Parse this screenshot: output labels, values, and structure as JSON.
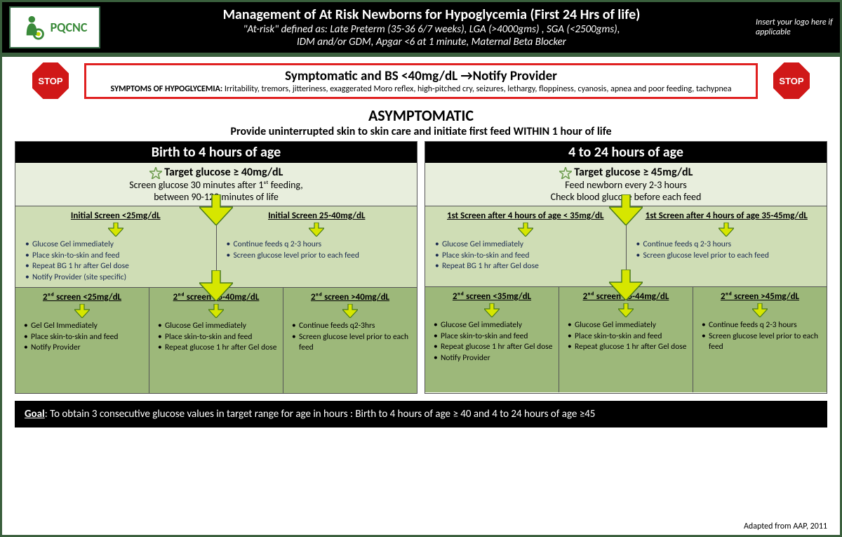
{
  "header": {
    "logo_text": "PQCNC",
    "title": "Management of At Risk Newborns for Hypoglycemia (First 24 Hrs of life)",
    "subtitle1": "\"At-risk\" defined as: Late Preterm (35-36 6/7 weeks), LGA (>4000gms) , SGA (<2500gms),",
    "subtitle2": "IDM and/or GDM, Apgar <6 at 1 minute, Maternal Beta Blocker",
    "logo_placeholder": "Insert your logo here if applicable"
  },
  "alert": {
    "stop_label": "STOP",
    "title": "Symptomatic and BS <40mg/dL →Notify Provider",
    "symptoms_label": "SYMPTOMS OF HYPOGLYCEMIA:",
    "symptoms": " Irritability, tremors, jitteriness, exaggerated Moro reflex, high-pitched cry, seizures, lethargy, floppiness, cyanosis, apnea and poor feeding, tachypnea"
  },
  "asymp": {
    "title": "ASYMPTOMATIC",
    "sub": "Provide uninterrupted skin to skin care and initiate first feed WITHIN 1 hour of life"
  },
  "col_left": {
    "header": "Birth to 4 hours of age",
    "target_title": "Target glucose  ≥ 40mg/dL",
    "target_sub1": "Screen glucose 30 minutes after 1ˢᵗ feeding,",
    "target_sub2": "between 90-120 minutes of life",
    "initial1_header": "Initial Screen <25mg/dL",
    "initial1_items": [
      "Glucose Gel immediately",
      "Place skin-to-skin and feed",
      "Repeat BG 1 hr after Gel dose",
      "Notify Provider (site specific)"
    ],
    "initial2_header": "Initial Screen 25-40mg/dL",
    "initial2_items": [
      "Continue feeds q 2-3 hours",
      "Screen glucose level prior to each feed"
    ],
    "second1_header": "2ⁿᵈ screen <25mg/dL",
    "second1_items": [
      "Gel Gel Immediately",
      "Place  skin-to-skin and feed",
      "Notify Provider"
    ],
    "second2_header": "2ⁿᵈ screen 25-40mg/dL",
    "second2_items": [
      "Glucose Gel immediately",
      "Place  skin-to-skin and feed",
      "Repeat glucose 1 hr after Gel dose"
    ],
    "second3_header": "2ⁿᵈ screen  >40mg/dL",
    "second3_items": [
      "Continue feeds q2-3hrs",
      "Screen glucose level prior to each feed"
    ]
  },
  "col_right": {
    "header": "4 to 24 hours of age",
    "target_title": "Target glucose  ≥ 45mg/dL",
    "target_sub1": "Feed newborn every 2-3 hours",
    "target_sub2": "Check blood glucose before each feed",
    "initial1_header": "1st Screen after 4 hours of age < 35mg/dL",
    "initial1_items": [
      "Glucose Gel immediately",
      "Place skin-to-skin and feed",
      "Repeat BG 1 hr after Gel dose"
    ],
    "initial2_header": "1st Screen after 4 hours of age 35-45mg/dL",
    "initial2_items": [
      "Continue feeds q 2-3 hours",
      "Screen glucose level prior to each feed"
    ],
    "second1_header": "2ⁿᵈ screen <35mg/dL",
    "second1_items": [
      "Glucose Gel immediately",
      "Place skin-to-skin and feed",
      "Repeat glucose 1 hr after Gel dose",
      "Notify Provider"
    ],
    "second2_header": "2ⁿᵈ screen 35-44mg/dL",
    "second2_items": [
      "Glucose Gel immediately",
      "Place skin-to-skin and feed",
      "Repeat glucose 1 hr after Gel dose"
    ],
    "second3_header": "2ⁿᵈ screen >45mg/dL",
    "second3_items": [
      "Continue feeds q 2-3 hours",
      "Screen glucose level prior to each feed"
    ]
  },
  "goal_label": "Goal",
  "goal_text": ": To obtain 3 consecutive glucose values in target range for age in hours :   Birth to 4 hours of age  ≥ 40  and    4 to 24 hours of age  ≥45",
  "footer": "Adapted from AAP, 2011",
  "colors": {
    "border_green": "#3a5f3d",
    "alert_red": "#e02020",
    "tier1_bg": "#e8eedd",
    "tier2_bg": "#cfddb5",
    "tier3_bg": "#9db87a",
    "arrow_fill": "#d6e600",
    "arrow_stroke": "#4a7a1a",
    "stop_red": "#d01818",
    "logo_green": "#3a8a3a",
    "logo_yellow": "#c5d800"
  }
}
